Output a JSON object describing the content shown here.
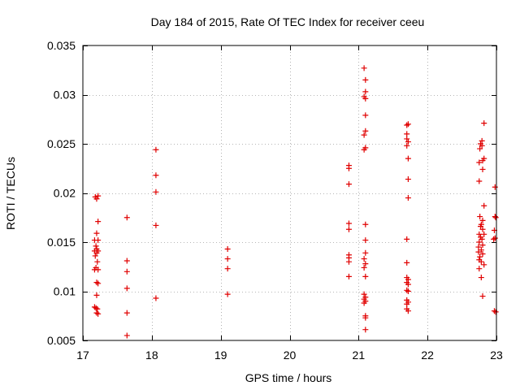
{
  "chart_data": {
    "type": "scatter",
    "title": "Day 184 of 2015, Rate Of TEC Index for receiver ceeu",
    "xlabel": "GPS time / hours",
    "ylabel": "ROTI / TECUs",
    "xlim": [
      17,
      23
    ],
    "ylim": [
      0.005,
      0.035
    ],
    "xticks": [
      17,
      18,
      19,
      20,
      21,
      22,
      23
    ],
    "xtick_labels": [
      "17",
      "18",
      "19",
      "20",
      "21",
      "22",
      "23"
    ],
    "yticks": [
      0.005,
      0.01,
      0.015,
      0.02,
      0.025,
      0.03,
      0.035
    ],
    "ytick_labels": [
      "0.005",
      "0.01",
      "0.015",
      "0.02",
      "0.025",
      "0.03",
      "0.035"
    ],
    "grid": true,
    "marker": "+",
    "color": "#e00000",
    "series": [
      {
        "name": "ROTI",
        "points": [
          [
            17.18,
            0.0196
          ],
          [
            17.2,
            0.0194
          ],
          [
            17.22,
            0.0197
          ],
          [
            17.22,
            0.0171
          ],
          [
            17.2,
            0.0159
          ],
          [
            17.17,
            0.0152
          ],
          [
            17.22,
            0.0152
          ],
          [
            17.19,
            0.0146
          ],
          [
            17.2,
            0.0143
          ],
          [
            17.17,
            0.0141
          ],
          [
            17.22,
            0.0141
          ],
          [
            17.2,
            0.0139
          ],
          [
            17.18,
            0.0136
          ],
          [
            17.21,
            0.013
          ],
          [
            17.19,
            0.0124
          ],
          [
            17.17,
            0.0122
          ],
          [
            17.22,
            0.0122
          ],
          [
            17.2,
            0.0109
          ],
          [
            17.22,
            0.0108
          ],
          [
            17.2,
            0.0096
          ],
          [
            17.17,
            0.0084
          ],
          [
            17.19,
            0.0083
          ],
          [
            17.21,
            0.0082
          ],
          [
            17.2,
            0.0078
          ],
          [
            17.22,
            0.0077
          ],
          [
            17.64,
            0.0175
          ],
          [
            17.64,
            0.0131
          ],
          [
            17.64,
            0.012
          ],
          [
            17.64,
            0.0103
          ],
          [
            17.64,
            0.0078
          ],
          [
            17.64,
            0.0055
          ],
          [
            18.06,
            0.0244
          ],
          [
            18.06,
            0.0218
          ],
          [
            18.06,
            0.0201
          ],
          [
            18.06,
            0.0167
          ],
          [
            18.06,
            0.0093
          ],
          [
            19.1,
            0.0143
          ],
          [
            19.1,
            0.0133
          ],
          [
            19.1,
            0.0123
          ],
          [
            19.1,
            0.0097
          ],
          [
            20.86,
            0.0228
          ],
          [
            20.86,
            0.0225
          ],
          [
            20.86,
            0.0209
          ],
          [
            20.86,
            0.0169
          ],
          [
            20.86,
            0.0163
          ],
          [
            20.86,
            0.0137
          ],
          [
            20.86,
            0.0134
          ],
          [
            20.86,
            0.013
          ],
          [
            20.86,
            0.0115
          ],
          [
            21.08,
            0.0327
          ],
          [
            21.1,
            0.0315
          ],
          [
            21.1,
            0.0303
          ],
          [
            21.08,
            0.0298
          ],
          [
            21.1,
            0.0296
          ],
          [
            21.1,
            0.0279
          ],
          [
            21.1,
            0.0263
          ],
          [
            21.08,
            0.0259
          ],
          [
            21.1,
            0.0246
          ],
          [
            21.08,
            0.0244
          ],
          [
            21.1,
            0.0168
          ],
          [
            21.1,
            0.0152
          ],
          [
            21.1,
            0.0139
          ],
          [
            21.08,
            0.0133
          ],
          [
            21.1,
            0.0128
          ],
          [
            21.08,
            0.0124
          ],
          [
            21.1,
            0.0115
          ],
          [
            21.08,
            0.0097
          ],
          [
            21.1,
            0.0094
          ],
          [
            21.08,
            0.0092
          ],
          [
            21.1,
            0.009
          ],
          [
            21.08,
            0.0088
          ],
          [
            21.1,
            0.0075
          ],
          [
            21.1,
            0.0073
          ],
          [
            21.1,
            0.0061
          ],
          [
            21.7,
            0.0269
          ],
          [
            21.72,
            0.027
          ],
          [
            21.7,
            0.026
          ],
          [
            21.7,
            0.0255
          ],
          [
            21.72,
            0.0252
          ],
          [
            21.7,
            0.0248
          ],
          [
            21.72,
            0.0235
          ],
          [
            21.72,
            0.0214
          ],
          [
            21.72,
            0.0195
          ],
          [
            21.7,
            0.0153
          ],
          [
            21.7,
            0.0129
          ],
          [
            21.7,
            0.0114
          ],
          [
            21.72,
            0.0112
          ],
          [
            21.7,
            0.0109
          ],
          [
            21.72,
            0.0107
          ],
          [
            21.7,
            0.0101
          ],
          [
            21.72,
            0.01
          ],
          [
            21.7,
            0.0091
          ],
          [
            21.72,
            0.0089
          ],
          [
            21.7,
            0.0087
          ],
          [
            21.7,
            0.0082
          ],
          [
            21.72,
            0.008
          ],
          [
            22.82,
            0.0271
          ],
          [
            22.77,
            0.025
          ],
          [
            22.79,
            0.0253
          ],
          [
            22.79,
            0.0248
          ],
          [
            22.76,
            0.0245
          ],
          [
            22.82,
            0.0235
          ],
          [
            22.8,
            0.0233
          ],
          [
            22.75,
            0.0231
          ],
          [
            22.8,
            0.0224
          ],
          [
            22.75,
            0.0212
          ],
          [
            22.82,
            0.0187
          ],
          [
            22.76,
            0.0176
          ],
          [
            22.8,
            0.0172
          ],
          [
            22.78,
            0.0168
          ],
          [
            22.77,
            0.0166
          ],
          [
            22.8,
            0.0163
          ],
          [
            22.75,
            0.0158
          ],
          [
            22.82,
            0.0158
          ],
          [
            22.77,
            0.0155
          ],
          [
            22.79,
            0.0153
          ],
          [
            22.75,
            0.015
          ],
          [
            22.8,
            0.0147
          ],
          [
            22.74,
            0.0145
          ],
          [
            22.78,
            0.0142
          ],
          [
            22.74,
            0.014
          ],
          [
            22.8,
            0.0138
          ],
          [
            22.76,
            0.0135
          ],
          [
            22.75,
            0.0132
          ],
          [
            22.78,
            0.013
          ],
          [
            22.82,
            0.0127
          ],
          [
            22.75,
            0.0123
          ],
          [
            22.78,
            0.0114
          ],
          [
            22.8,
            0.0095
          ],
          [
            22.98,
            0.0206
          ],
          [
            22.98,
            0.0176
          ],
          [
            22.99,
            0.0175
          ],
          [
            22.97,
            0.0162
          ],
          [
            22.98,
            0.0154
          ],
          [
            22.96,
            0.0153
          ],
          [
            22.97,
            0.008
          ],
          [
            22.99,
            0.0079
          ]
        ]
      }
    ]
  }
}
